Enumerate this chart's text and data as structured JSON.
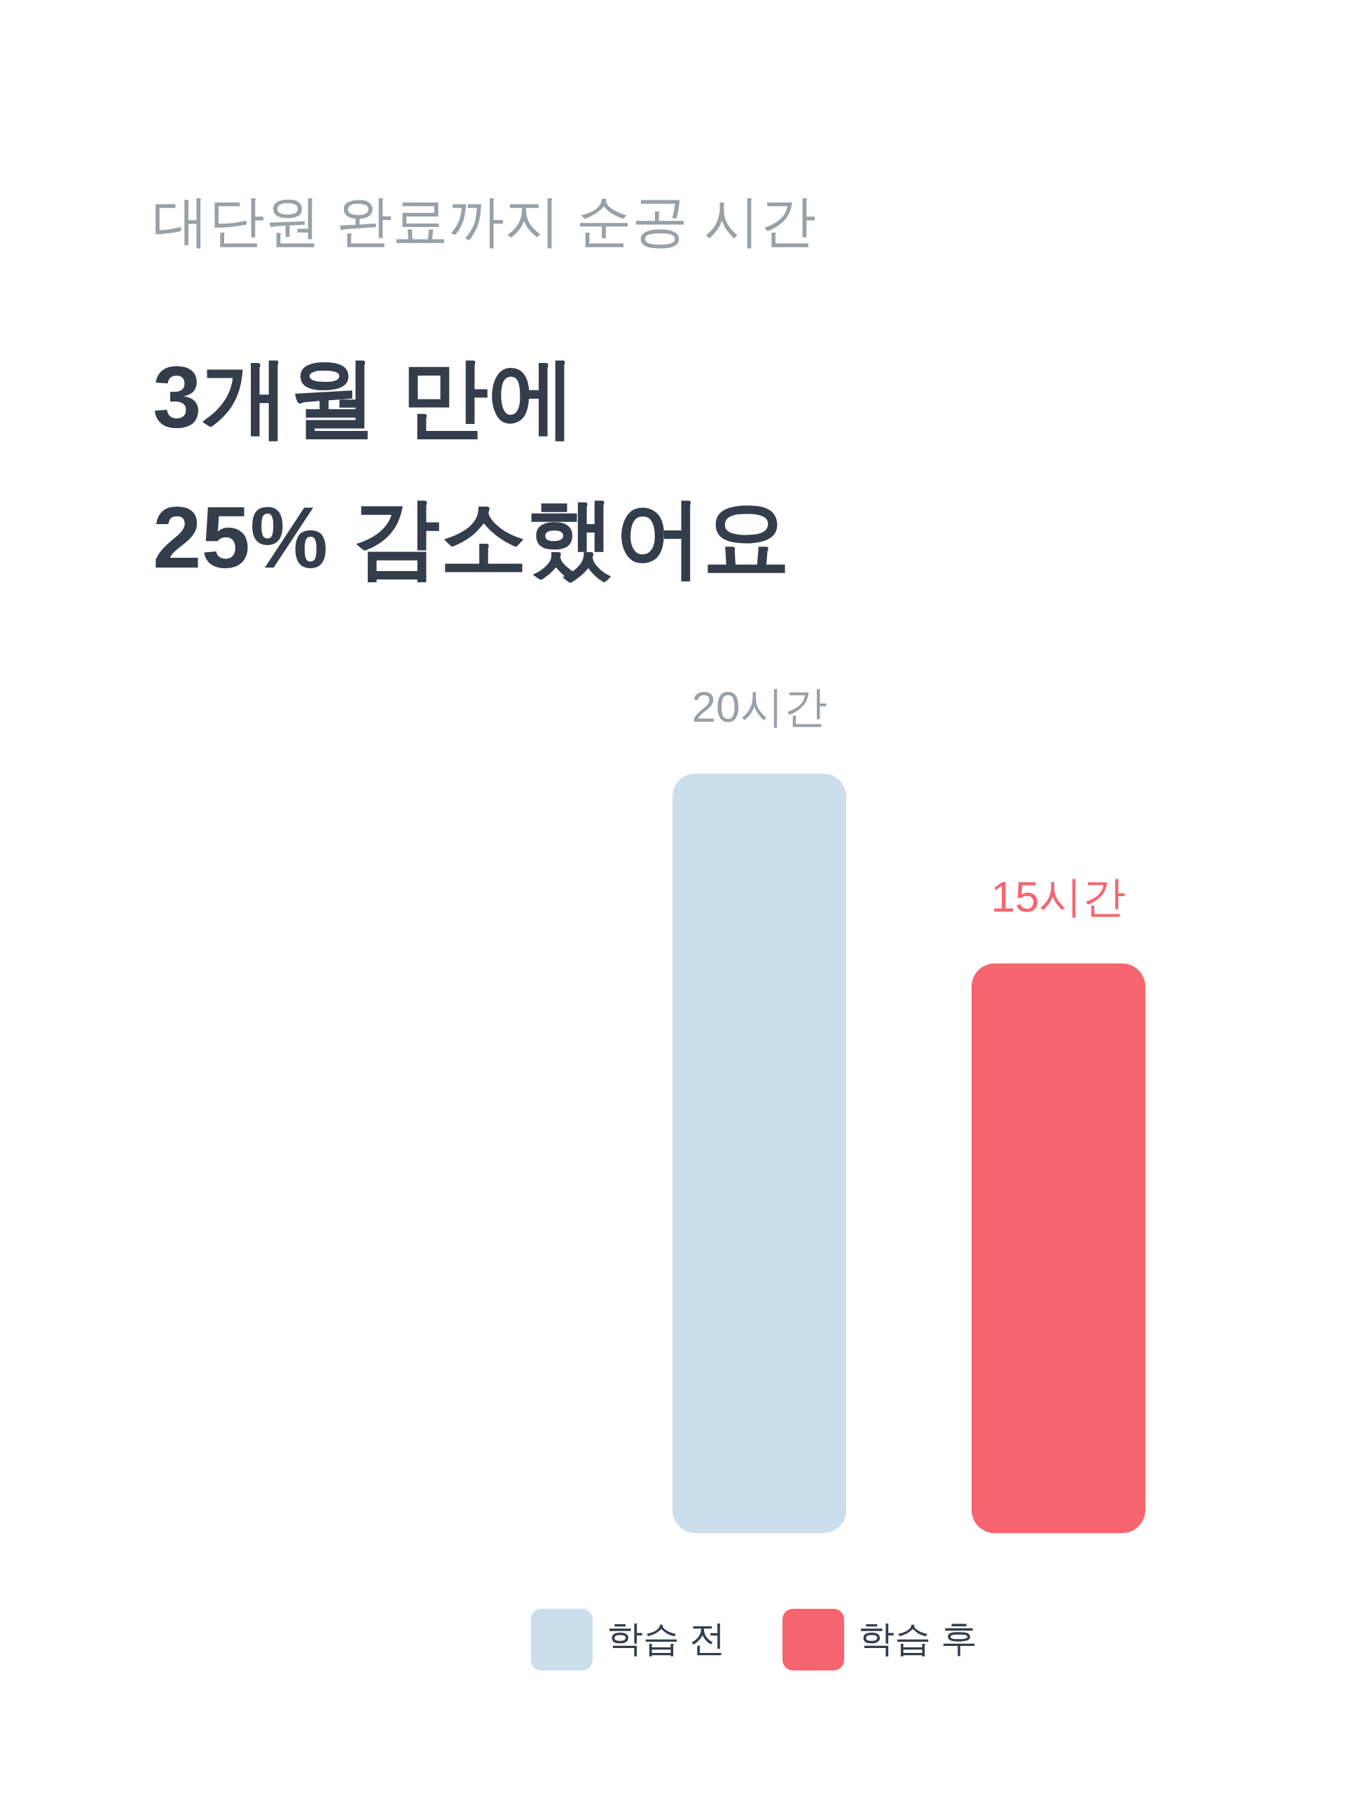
{
  "chart_data": {
    "type": "bar",
    "subtitle": "대단원 완료까지 순공 시간",
    "title": "3개월 만에\n25% 감소했어요",
    "categories": [
      null
    ],
    "series": [
      {
        "name": "학습 전",
        "color": "#cbdeec",
        "values": [
          20
        ],
        "value_labels": [
          "20시간"
        ]
      },
      {
        "name": "학습 후",
        "color": "#f7656f",
        "values": [
          15
        ],
        "value_labels": [
          "15시간"
        ]
      }
    ],
    "legend": "bottom"
  }
}
